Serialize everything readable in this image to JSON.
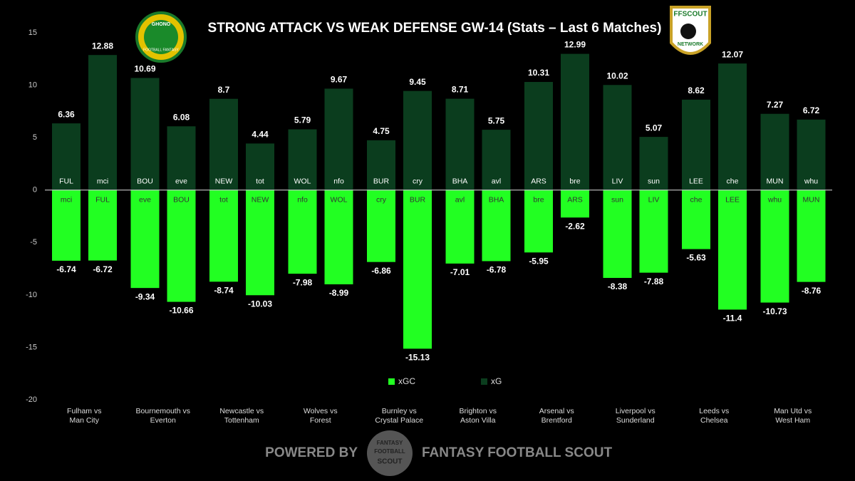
{
  "chart_data": {
    "type": "bar",
    "title": "STRONG ATTACK VS WEAK DEFENSE GW-14 (Stats – Last 6 Matches)",
    "groups": [
      [
        "Fulham vs",
        "Man City"
      ],
      [
        "Bournemouth vs",
        "Everton"
      ],
      [
        "Newcastle vs",
        "Tottenham"
      ],
      [
        "Wolves vs",
        "Forest"
      ],
      [
        "Burnley vs",
        "Crystal Palace"
      ],
      [
        "Brighton vs",
        "Aston Villa"
      ],
      [
        "Arsenal vs",
        "Brentford"
      ],
      [
        "Liverpool vs",
        "Sunderland"
      ],
      [
        "Leeds vs",
        "Chelsea"
      ],
      [
        "Man Utd vs",
        "West Ham"
      ]
    ],
    "categories": [
      "FUL",
      "mci",
      "BOU",
      "eve",
      "NEW",
      "tot",
      "WOL",
      "nfo",
      "BUR",
      "cry",
      "BHA",
      "avl",
      "ARS",
      "bre",
      "LIV",
      "sun",
      "LEE",
      "che",
      "MUN",
      "whu"
    ],
    "series": [
      {
        "name": "xGC",
        "color": "#22ff22",
        "bar_labels": [
          "mci",
          "FUL",
          "eve",
          "BOU",
          "tot",
          "NEW",
          "nfo",
          "WOL",
          "cry",
          "BUR",
          "avl",
          "BHA",
          "bre",
          "ARS",
          "sun",
          "LIV",
          "che",
          "LEE",
          "whu",
          "MUN"
        ],
        "values": [
          -6.74,
          -6.72,
          -9.34,
          -10.66,
          -8.74,
          -10.03,
          -7.98,
          -8.99,
          -6.86,
          -15.13,
          -7.01,
          -6.78,
          -5.95,
          -2.62,
          -8.38,
          -7.88,
          -5.63,
          -11.4,
          -10.73,
          -8.76
        ]
      },
      {
        "name": "xG",
        "color": "#0b3d1e",
        "values": [
          6.36,
          12.88,
          10.69,
          6.08,
          8.7,
          4.44,
          5.79,
          9.67,
          4.75,
          9.45,
          8.71,
          5.75,
          10.31,
          12.99,
          10.02,
          5.07,
          8.62,
          12.07,
          7.27,
          6.72
        ]
      }
    ],
    "ylim": [
      -20,
      15
    ],
    "yticks": [
      -20,
      -15,
      -10,
      -5,
      0,
      5,
      10,
      15
    ],
    "logos": {
      "left": [
        "GHONO",
        "FOOTBALL FANTASY"
      ],
      "right": [
        "FFSCOUT",
        "NETWORK"
      ],
      "footer_badge": [
        "FANTASY",
        "FOOTBALL",
        "SCOUT"
      ]
    },
    "footer": [
      "POWERED BY",
      "FANTASY FOOTBALL SCOUT"
    ]
  }
}
